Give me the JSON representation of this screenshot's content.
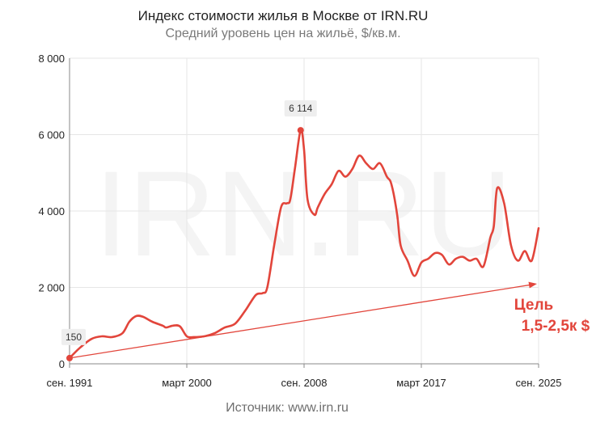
{
  "title": "Индекс стоимости жилья в Москве от IRN.RU",
  "subtitle": "Средний уровень цен на жильё, $/кв.м.",
  "source": "Источник: www.irn.ru",
  "watermark": "IRN.RU",
  "colors": {
    "line": "#e2453b",
    "grid": "#e6e6e6",
    "axis": "#888888",
    "label_box": "#eeeeee"
  },
  "chart_data": {
    "type": "line",
    "x_ticks": [
      "сен. 1991",
      "март 2000",
      "сен. 2008",
      "март 2017",
      "сен. 2025"
    ],
    "y_ticks": [
      "0",
      "2 000",
      "4 000",
      "6 000",
      "8 000"
    ],
    "ylim": [
      0,
      8000
    ],
    "xlim": [
      "1991-09",
      "2025-09"
    ],
    "grid": true,
    "series": [
      {
        "x": [
          "1991-09",
          "1992-06",
          "1993-04",
          "1994-01",
          "1994-10",
          "1995-07",
          "1996-01",
          "1996-07",
          "1997-01",
          "1997-09",
          "1998-06",
          "1998-09",
          "1999-03",
          "1999-09",
          "2000-03",
          "2000-09",
          "2001-06",
          "2002-03",
          "2002-12",
          "2003-09",
          "2004-06",
          "2005-03",
          "2005-09",
          "2006-01",
          "2006-07",
          "2007-01",
          "2007-06",
          "2007-09",
          "2008-01",
          "2008-06",
          "2008-09",
          "2008-12",
          "2009-06",
          "2009-09",
          "2010-03",
          "2010-09",
          "2011-03",
          "2011-09",
          "2012-03",
          "2012-09",
          "2013-03",
          "2013-09",
          "2014-03",
          "2014-09",
          "2015-01",
          "2015-06",
          "2015-09",
          "2016-03",
          "2016-09",
          "2017-03",
          "2017-09",
          "2018-03",
          "2018-09",
          "2019-03",
          "2019-09",
          "2020-03",
          "2020-09",
          "2021-03",
          "2021-09",
          "2022-03",
          "2022-06",
          "2022-09",
          "2023-03",
          "2023-09",
          "2024-03",
          "2024-09",
          "2025-03",
          "2025-09"
        ],
        "values": [
          150,
          420,
          650,
          720,
          700,
          800,
          1100,
          1250,
          1230,
          1100,
          1000,
          950,
          1000,
          980,
          720,
          700,
          720,
          800,
          950,
          1050,
          1400,
          1800,
          1850,
          2000,
          3100,
          4100,
          4200,
          4300,
          5100,
          6114,
          5600,
          4300,
          3900,
          4100,
          4450,
          4700,
          5050,
          4900,
          5100,
          5450,
          5250,
          5100,
          5250,
          4900,
          4700,
          3900,
          3100,
          2700,
          2300,
          2650,
          2750,
          2900,
          2850,
          2600,
          2750,
          2800,
          2700,
          2750,
          2550,
          3300,
          3600,
          4600,
          4200,
          3100,
          2700,
          2950,
          2700,
          3550
        ]
      }
    ],
    "annotations": [
      {
        "x": "1991-09",
        "value": 150,
        "text": "150"
      },
      {
        "x": "2008-06",
        "value": 6114,
        "text": "6 114"
      }
    ],
    "trend": {
      "label_lines": [
        "Цель",
        "1,5-2,5к $"
      ]
    }
  }
}
